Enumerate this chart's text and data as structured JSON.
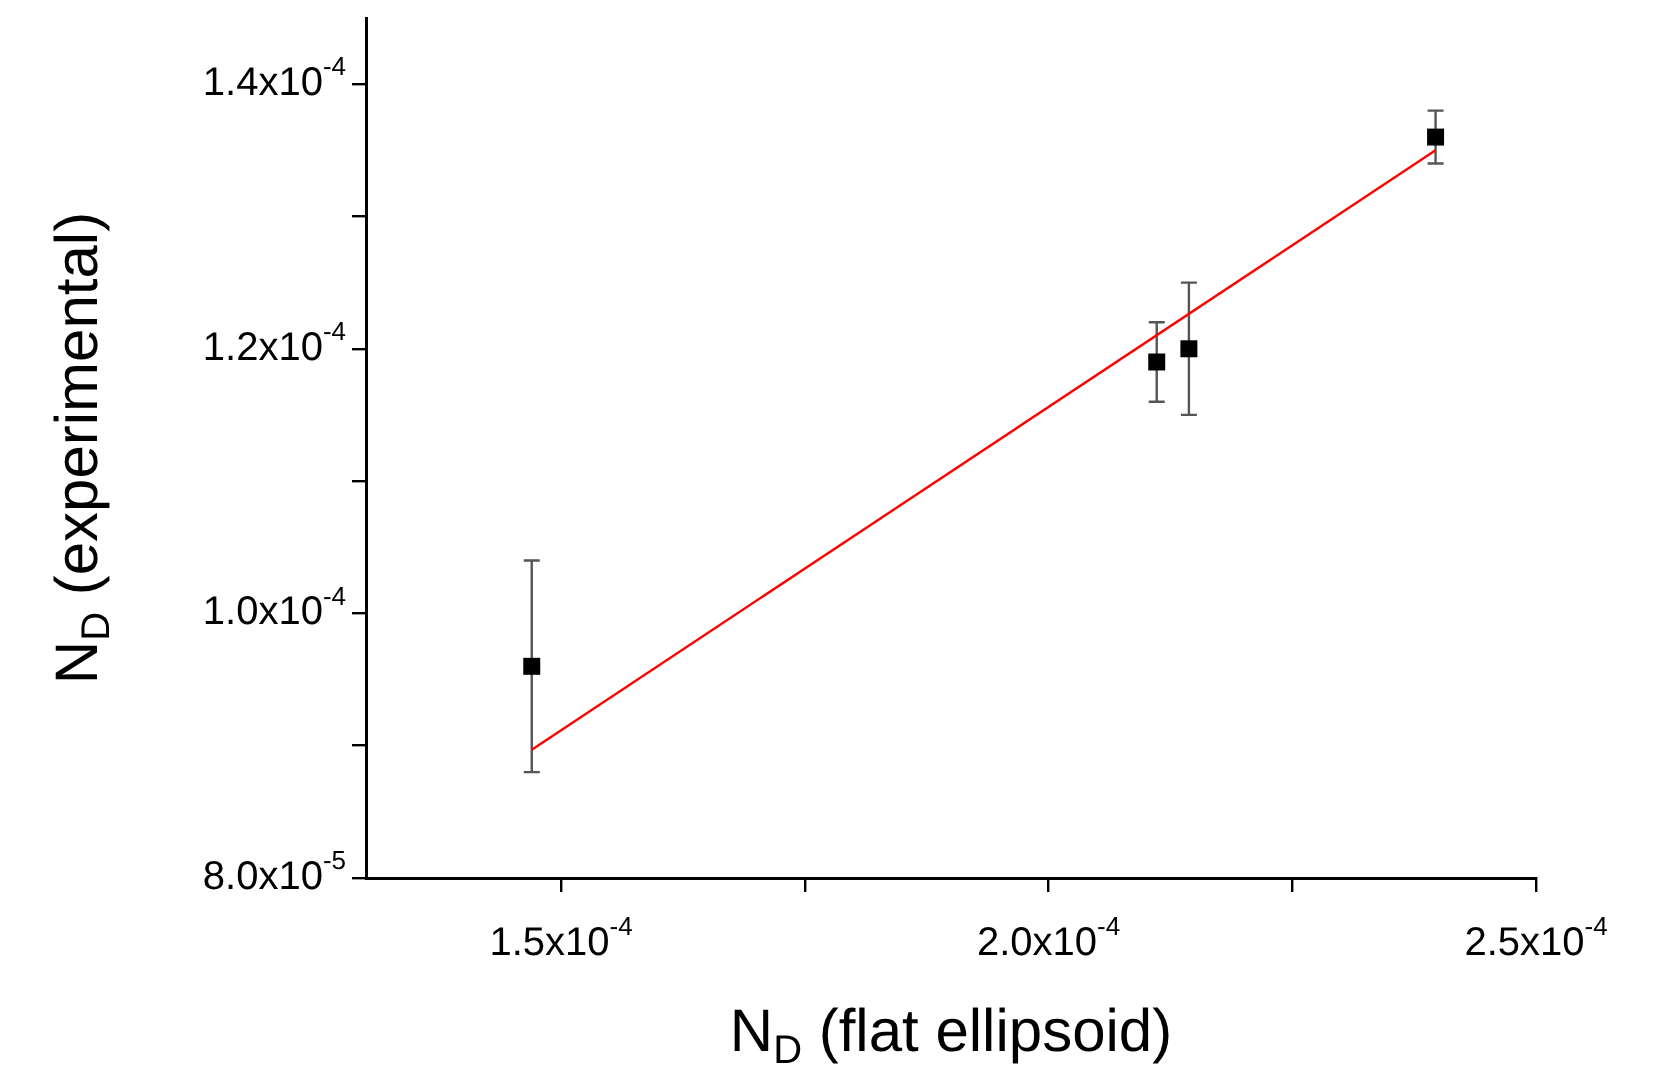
{
  "chart_data": {
    "type": "scatter",
    "xlabel": "N$_{D}$ (flat ellipsoid)",
    "ylabel": "N$_{D}$ (experimental)",
    "series": [
      {
        "color": "#000000",
        "x": [
          0.000147,
          0.0002111,
          0.0002144,
          0.0002397
        ],
        "values": [
          9.6e-05,
          0.000119,
          0.00012,
          0.000136
        ],
        "errors": [
          8e-06,
          3e-06,
          5e-06,
          2e-06
        ],
        "marker": "square"
      },
      {
        "type": "line",
        "color": "#ff0000",
        "x": [
          0.000147,
          0.0002397
        ],
        "values": [
          8.97e-05,
          0.000135
        ],
        "marker": "none",
        "line_style": "solid"
      }
    ],
    "xlim": [
      0.00013,
      0.00025
    ],
    "xticks": [
      {
        "value": 0.00015,
        "label": "1.5x10$^{-4}$"
      },
      {
        "value": 0.000175,
        "label": null
      },
      {
        "value": 0.0002,
        "label": "2.0x10$^{-4}$"
      },
      {
        "value": 0.000225,
        "label": null
      },
      {
        "value": 0.00025,
        "label": "2.5x10$^{-4}$"
      }
    ],
    "ylim": [
      8e-05,
      0.000145
    ],
    "yticks": [
      {
        "value": 8e-05,
        "label": "8.0x10$^{-5}$"
      },
      {
        "value": 9e-05,
        "label": null
      },
      {
        "value": 0.0001,
        "label": "1.0x10$^{-4}$"
      },
      {
        "value": 0.00011,
        "label": null
      },
      {
        "value": 0.00012,
        "label": "1.2x10$^{-4}$"
      },
      {
        "value": 0.00013,
        "label": null
      },
      {
        "value": 0.00014,
        "label": "1.4x10$^{-4}$"
      }
    ],
    "grid": false,
    "legend": false
  }
}
